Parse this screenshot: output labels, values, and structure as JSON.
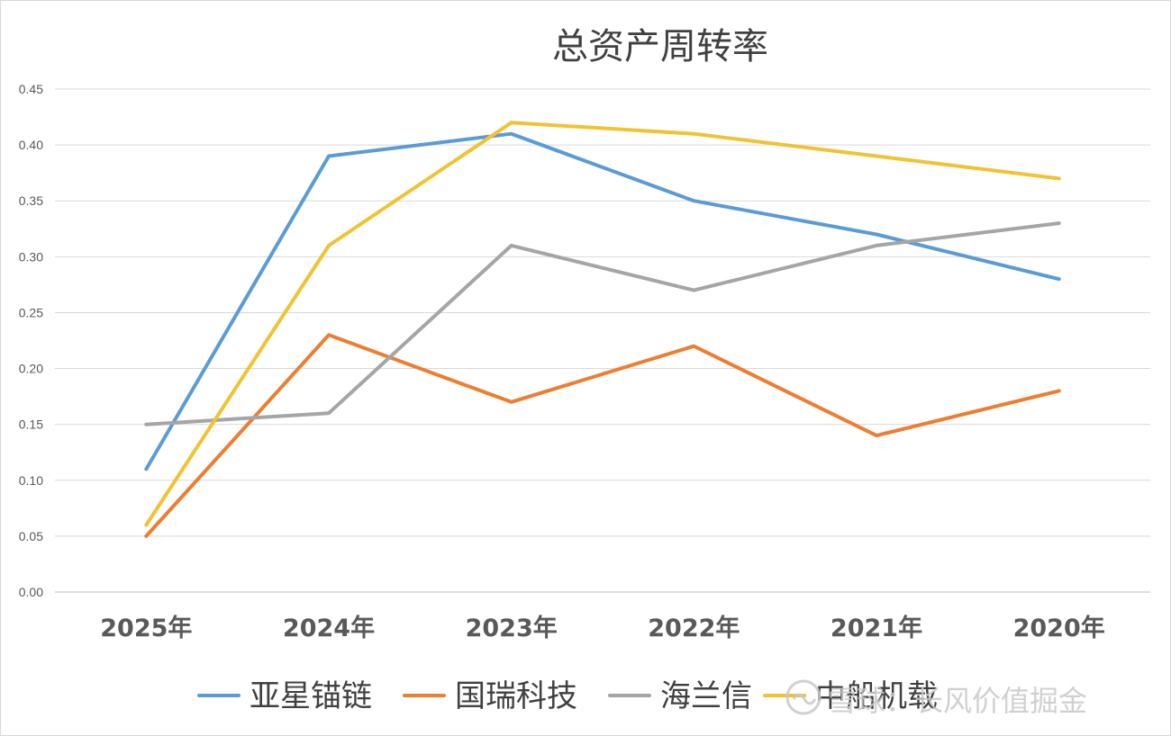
{
  "chart_data": {
    "type": "line",
    "title": "总资产周转率",
    "categories": [
      "2025年",
      "2024年",
      "2023年",
      "2022年",
      "2021年",
      "2020年"
    ],
    "ylim": [
      0,
      0.45
    ],
    "yticks": [
      "0.00",
      "0.05",
      "0.10",
      "0.15",
      "0.20",
      "0.25",
      "0.30",
      "0.35",
      "0.40",
      "0.45"
    ],
    "grid": true,
    "legend_position": "bottom",
    "series": [
      {
        "name": "亚星锚链",
        "color": "#5b9bd5",
        "values": [
          0.11,
          0.39,
          0.41,
          0.35,
          0.32,
          0.28
        ]
      },
      {
        "name": "国瑞科技",
        "color": "#ed7d31",
        "values": [
          0.05,
          0.23,
          0.17,
          0.22,
          0.14,
          0.18
        ]
      },
      {
        "name": "海兰信",
        "color": "#a5a5a5",
        "values": [
          0.15,
          0.16,
          0.31,
          0.27,
          0.31,
          0.33
        ]
      },
      {
        "name": "中船机载",
        "color": "#f1c232",
        "values": [
          0.06,
          0.31,
          0.42,
          0.41,
          0.39,
          0.37
        ]
      }
    ]
  },
  "watermark": {
    "text": "雪球：长风价值掘金"
  }
}
